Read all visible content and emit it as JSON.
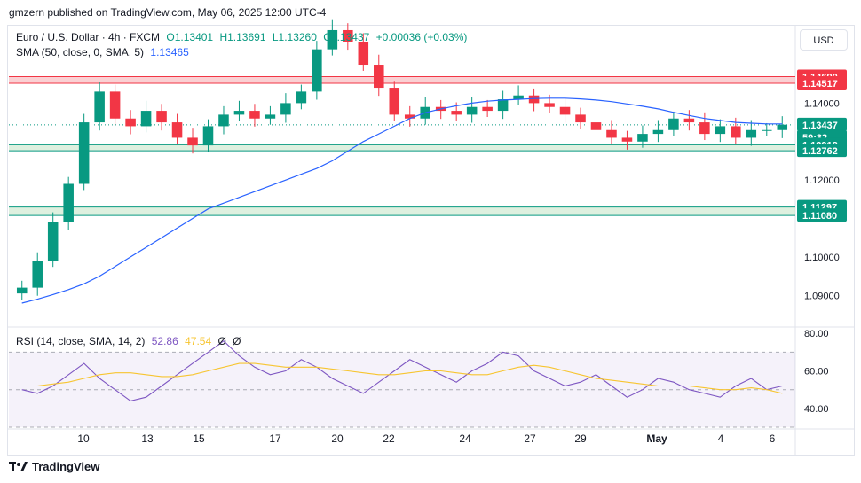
{
  "header": {
    "published": "gmzern published on TradingView.com, May 06, 2025 12:00 UTC-4"
  },
  "legend": {
    "symbol": "Euro / U.S. Dollar · 4h · FXCM",
    "open": "O1.13401",
    "high": "H1.13691",
    "low": "L1.13260",
    "close": "C1.13437",
    "change": "+0.00036 (+0.03%)",
    "sma_label": "SMA (50, close, 0, SMA, 5)",
    "sma_value": "1.13465",
    "rsi_label": "RSI (14, close, SMA, 14, 2)",
    "rsi_value": "52.86",
    "rsi_sma_value": "47.54",
    "rsi_extra1": "Ø",
    "rsi_extra2": "Ø"
  },
  "currency": "USD",
  "footer": {
    "brand": "TradingView"
  },
  "colors": {
    "up": "#089981",
    "down": "#f23645",
    "sma": "#2962ff",
    "rsi": "#7e57c2",
    "rsi_sma": "#f7c530",
    "resistance_zone": "#f7b0b5",
    "support_zone": "#c8e6c9"
  },
  "chart_data": [
    {
      "type": "candlestick",
      "title": "Euro / U.S. Dollar · 4h · FXCM",
      "ylim": [
        1.082,
        1.153
      ],
      "y_ticks": [
        "1.09000",
        "1.10000",
        "1.12000",
        "1.14000"
      ],
      "x_ticks": [
        "10",
        "13",
        "15",
        "17",
        "20",
        "22",
        "24",
        "27",
        "29",
        "May",
        "4",
        "6"
      ],
      "price_labels": [
        {
          "value": 1.1469,
          "text": "1.14690",
          "color": "#f23645"
        },
        {
          "value": 1.14517,
          "text": "1.14517",
          "color": "#f23645"
        },
        {
          "value": 1.13437,
          "text": "1.13437",
          "color": "#089981"
        },
        {
          "value": 1.13437,
          "text": "59:32",
          "color": "#089981",
          "sub": true
        },
        {
          "value": 1.12918,
          "text": "1.12918",
          "color": "#089981"
        },
        {
          "value": 1.12762,
          "text": "1.12762",
          "color": "#089981"
        },
        {
          "value": 1.11297,
          "text": "1.11297",
          "color": "#089981"
        },
        {
          "value": 1.1108,
          "text": "1.11080",
          "color": "#089981"
        }
      ],
      "zones": [
        {
          "from": 1.14517,
          "to": 1.1469,
          "kind": "resistance"
        },
        {
          "from": 1.12762,
          "to": 1.12918,
          "kind": "support"
        },
        {
          "from": 1.1108,
          "to": 1.11297,
          "kind": "support"
        }
      ],
      "current_price": 1.13437,
      "sma_series": [
        1.088,
        1.089,
        1.0902,
        1.0915,
        1.093,
        1.095,
        1.0975,
        1.1,
        1.1025,
        1.105,
        1.1075,
        1.11,
        1.1125,
        1.114,
        1.1155,
        1.117,
        1.1185,
        1.12,
        1.1215,
        1.123,
        1.125,
        1.1275,
        1.13,
        1.132,
        1.134,
        1.136,
        1.1375,
        1.1385,
        1.1393,
        1.14,
        1.1405,
        1.1408,
        1.141,
        1.1412,
        1.1413,
        1.1413,
        1.1411,
        1.1408,
        1.1404,
        1.1398,
        1.1392,
        1.1385,
        1.1376,
        1.1368,
        1.136,
        1.1355,
        1.135,
        1.1348,
        1.1346,
        1.1346
      ],
      "candles_close": [
        1.092,
        1.099,
        1.109,
        1.119,
        1.135,
        1.143,
        1.136,
        1.134,
        1.138,
        1.135,
        1.131,
        1.129,
        1.134,
        1.137,
        1.138,
        1.136,
        1.137,
        1.14,
        1.143,
        1.154,
        1.159,
        1.156,
        1.15,
        1.144,
        1.137,
        1.136,
        1.139,
        1.138,
        1.137,
        1.139,
        1.138,
        1.141,
        1.142,
        1.14,
        1.139,
        1.137,
        1.135,
        1.133,
        1.131,
        1.13,
        1.132,
        1.133,
        1.136,
        1.135,
        1.132,
        1.134,
        1.131,
        1.133,
        1.133,
        1.1344
      ]
    },
    {
      "type": "line",
      "title": "RSI (14, close, SMA, 14, 2)",
      "ylim": [
        30,
        82
      ],
      "y_ticks": [
        "80.00",
        "60.00",
        "40.00"
      ],
      "bands": [
        70,
        50,
        30
      ],
      "series": [
        {
          "name": "RSI",
          "values": [
            50,
            48,
            52,
            58,
            64,
            56,
            50,
            44,
            46,
            52,
            58,
            64,
            70,
            76,
            68,
            62,
            58,
            60,
            66,
            62,
            56,
            52,
            48,
            54,
            60,
            66,
            62,
            58,
            54,
            60,
            64,
            70,
            68,
            60,
            56,
            52,
            54,
            58,
            52,
            46,
            50,
            56,
            54,
            50,
            48,
            46,
            52,
            56,
            50,
            52
          ]
        },
        {
          "name": "RSI SMA",
          "values": [
            52,
            52,
            53,
            54,
            56,
            58,
            59,
            59,
            58,
            57,
            57,
            58,
            60,
            62,
            64,
            64,
            63,
            62,
            62,
            62,
            61,
            60,
            59,
            58,
            58,
            59,
            60,
            60,
            59,
            58,
            58,
            60,
            62,
            63,
            62,
            60,
            58,
            56,
            55,
            54,
            53,
            52,
            52,
            52,
            51,
            50,
            50,
            51,
            50,
            48
          ]
        }
      ]
    }
  ]
}
